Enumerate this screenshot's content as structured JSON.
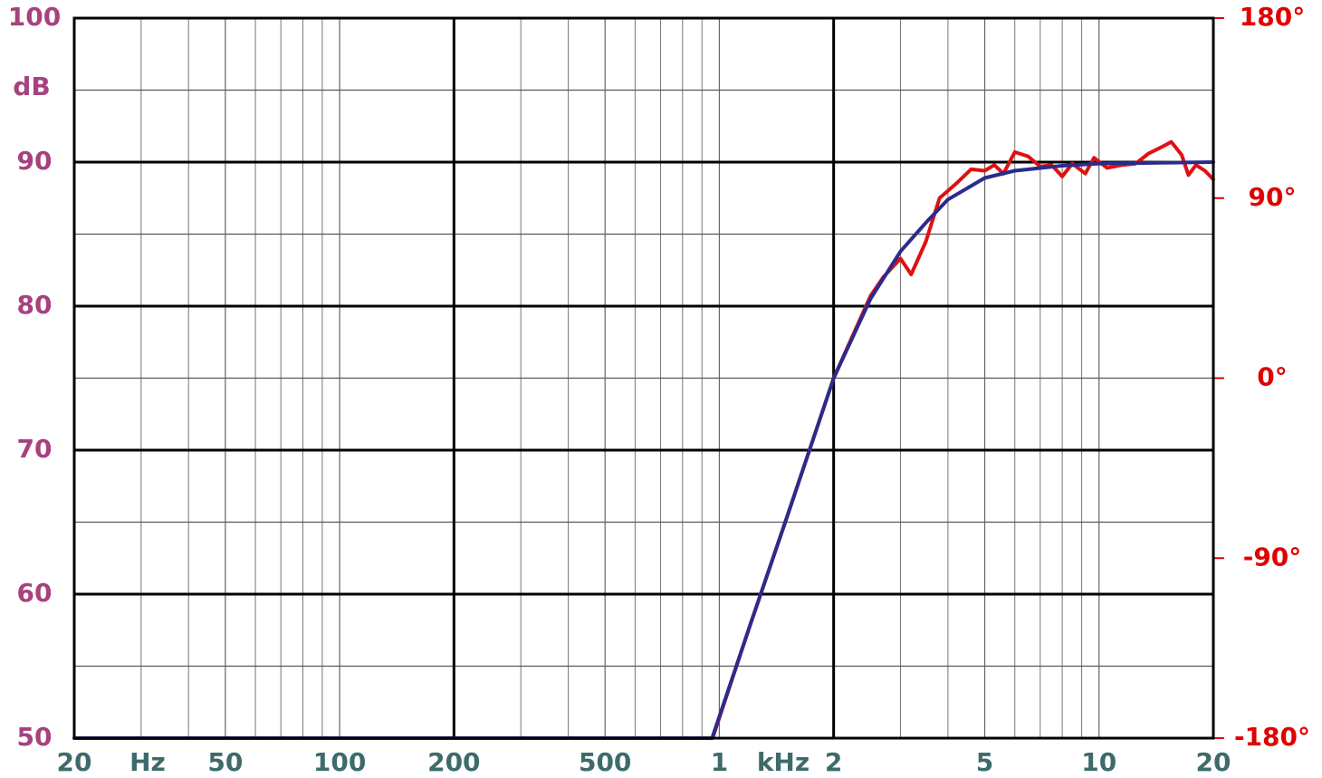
{
  "chart_data": {
    "type": "line",
    "annotations": [
      "dB",
      "Hz",
      "kHz"
    ],
    "xscale": "log",
    "xlim": [
      20,
      20000
    ],
    "xticks": [
      20,
      50,
      100,
      200,
      500,
      {
        "value": 1000,
        "label": "1"
      },
      {
        "value": 2000,
        "label": "2"
      },
      {
        "value": 5000,
        "label": "5"
      },
      {
        "value": 10000,
        "label": "10"
      },
      {
        "value": 20000,
        "label": "20"
      }
    ],
    "xgrid": [
      30,
      40,
      60,
      70,
      80,
      90,
      300,
      400,
      600,
      700,
      800,
      900,
      3000,
      4000,
      6000,
      7000,
      8000,
      9000
    ],
    "ylim": [
      50,
      100
    ],
    "yticks": [
      50,
      60,
      70,
      80,
      90,
      100
    ],
    "ygrid": [
      55,
      65,
      75,
      85,
      95
    ],
    "y2lim": [
      -180,
      180
    ],
    "y2ticks": [
      {
        "value": -180,
        "label": "-180°"
      },
      {
        "value": -90,
        "label": "-90°"
      },
      {
        "value": 0,
        "label": "0°"
      },
      {
        "value": 90,
        "label": "90°"
      },
      {
        "value": 180,
        "label": "180°"
      }
    ],
    "grid": true,
    "series": [
      {
        "color": "#e01010",
        "x": [
          960,
          1200,
          1500,
          2000,
          2500,
          2700,
          3000,
          3200,
          3500,
          3800,
          4200,
          4600,
          5000,
          5300,
          5600,
          6000,
          6500,
          7000,
          7500,
          8000,
          8500,
          9200,
          9700,
          10500,
          11500,
          12500,
          13500,
          14500,
          15500,
          16500,
          17200,
          18000,
          19000,
          20000
        ],
        "values": [
          50,
          57.7,
          65.2,
          75,
          80.7,
          82,
          83.3,
          82.2,
          84.5,
          87.5,
          88.5,
          89.5,
          89.4,
          89.8,
          89.2,
          90.7,
          90.4,
          89.7,
          89.8,
          89.0,
          89.9,
          89.2,
          90.3,
          89.6,
          89.8,
          89.9,
          90.6,
          91.0,
          91.4,
          90.5,
          89.1,
          89.8,
          89.4,
          88.8
        ]
      },
      {
        "color": "#2b2b8c",
        "x": [
          20,
          957,
          1200,
          1500,
          2000,
          2500,
          3000,
          3500,
          4000,
          5000,
          6000,
          8000,
          10000,
          20000
        ],
        "values": [
          50,
          50,
          57.7,
          65.2,
          75,
          80.5,
          83.8,
          85.8,
          87.4,
          88.9,
          89.4,
          89.75,
          89.9,
          90
        ]
      }
    ]
  }
}
